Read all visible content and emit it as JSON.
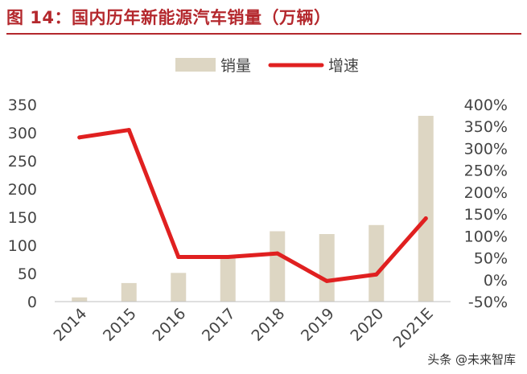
{
  "title": "图 14：国内历年新能源汽车销量（万辆）",
  "watermark": "头条 @未来智库",
  "colors": {
    "bar": "#ddd6c3",
    "line": "#e02020",
    "title": "#b4282d",
    "axis_text": "#444444"
  },
  "chart_data": {
    "type": "bar+line",
    "categories": [
      "2014",
      "2015",
      "2016",
      "2017",
      "2018",
      "2019",
      "2020",
      "2021E"
    ],
    "series": [
      {
        "name": "销量",
        "type": "bar",
        "axis": "left",
        "values": [
          7.5,
          33,
          51,
          78,
          125,
          120,
          136,
          330
        ]
      },
      {
        "name": "增速",
        "type": "line",
        "axis": "right",
        "unit": "%",
        "values": [
          325,
          342,
          52,
          52,
          60,
          -3,
          12,
          140
        ]
      }
    ],
    "y_left": {
      "min": 0,
      "max": 350,
      "ticks": [
        "0",
        "50",
        "100",
        "150",
        "200",
        "250",
        "300",
        "350"
      ]
    },
    "y_right": {
      "min": -50,
      "max": 400,
      "ticks": [
        "-50%",
        "0%",
        "50%",
        "100%",
        "150%",
        "200%",
        "250%",
        "300%",
        "350%",
        "400%"
      ]
    },
    "legend_position": "top-center",
    "grid": false
  }
}
